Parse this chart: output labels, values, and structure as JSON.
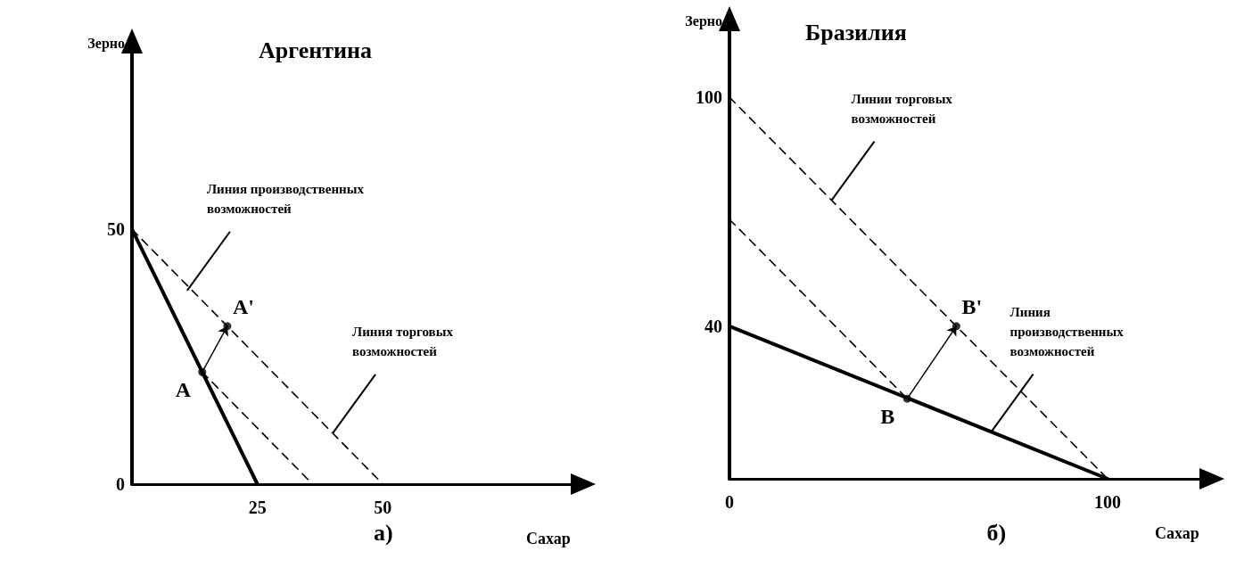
{
  "chart_data": [
    {
      "type": "line",
      "title": "Аргентина",
      "xlabel": "Сахар",
      "ylabel": "Зерно",
      "xlim": [
        0,
        91
      ],
      "ylim": [
        0,
        88
      ],
      "xticks": [
        25,
        50
      ],
      "yticks": [
        0,
        50
      ],
      "series": [
        {
          "x": [
            0,
            25
          ],
          "values": [
            50,
            0
          ],
          "color": "#000000",
          "line_style": "solid",
          "marker": "none"
        },
        {
          "x": [
            0,
            50
          ],
          "values": [
            50,
            0
          ],
          "color": "#000000",
          "line_style": "dashed",
          "marker": "none"
        },
        {
          "x": [
            14,
            36
          ],
          "values": [
            22,
            0
          ],
          "color": "#000000",
          "line_style": "dashed",
          "marker": "none"
        },
        {
          "type": "scatter",
          "x": [
            14,
            19
          ],
          "values": [
            22,
            31
          ],
          "color": "#000000",
          "marker": "circle"
        }
      ],
      "annotations": [
        {
          "text": "A",
          "x": 14,
          "y": 22
        },
        {
          "text": "A'",
          "x": 19,
          "y": 31
        },
        {
          "text": "Линия производственных\nвозможностей",
          "x": 11,
          "y": 38
        },
        {
          "text": "Линия торговых\nвозможностей",
          "x": 40,
          "y": 10
        },
        "а)"
      ]
    },
    {
      "type": "line",
      "title": "Бразилия",
      "xlabel": "Сахар",
      "ylabel": "Зерно",
      "xlim": [
        0,
        129
      ],
      "ylim": [
        0,
        122
      ],
      "xticks": [
        0,
        100
      ],
      "yticks": [
        40,
        100
      ],
      "series": [
        {
          "x": [
            0,
            100
          ],
          "values": [
            40,
            0
          ],
          "color": "#000000",
          "line_style": "solid",
          "marker": "none"
        },
        {
          "x": [
            0,
            100
          ],
          "values": [
            100,
            0
          ],
          "color": "#000000",
          "line_style": "dashed",
          "marker": "none"
        },
        {
          "x": [
            0,
            47
          ],
          "values": [
            68,
            21
          ],
          "color": "#000000",
          "line_style": "dashed",
          "marker": "none"
        },
        {
          "type": "scatter",
          "x": [
            47,
            60
          ],
          "values": [
            21,
            40
          ],
          "color": "#000000",
          "marker": "circle"
        }
      ],
      "annotations": [
        {
          "text": "B",
          "x": 47,
          "y": 21
        },
        {
          "text": "B'",
          "x": 60,
          "y": 40
        },
        {
          "text": "Линии торговых\nвозможностей",
          "x": 27,
          "y": 73
        },
        {
          "text": "Линия\nпроизводственных\nвозможностей",
          "x": 69,
          "y": 12
        },
        "б)"
      ]
    }
  ]
}
